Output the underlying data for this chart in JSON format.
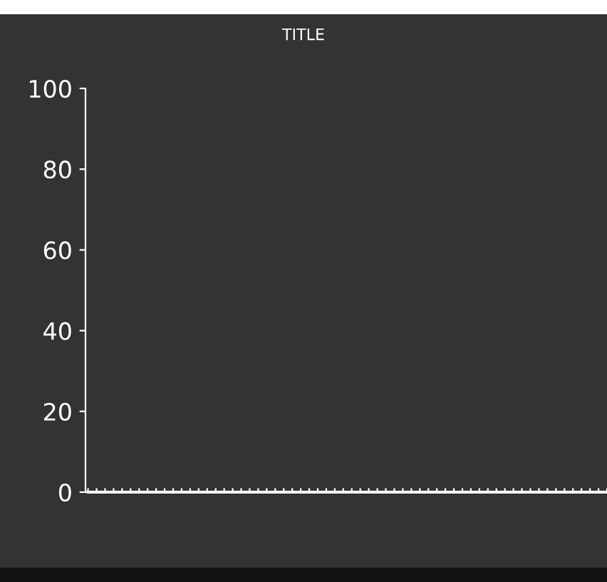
{
  "chart_data": {
    "type": "line",
    "title": "TITLE",
    "categories": [
      null,
      null,
      null,
      null,
      null,
      null,
      null,
      null,
      null,
      null,
      null,
      null,
      null,
      null,
      null,
      null,
      null,
      null,
      null,
      null,
      null,
      null,
      null,
      null,
      null,
      null,
      null,
      null,
      null,
      null,
      null,
      null,
      null,
      null,
      null,
      null,
      null,
      null,
      null,
      null,
      null,
      null,
      null,
      null,
      null,
      null,
      null,
      null,
      null,
      null,
      null,
      null,
      null,
      null,
      null,
      null,
      null,
      null,
      null,
      null,
      null,
      null
    ],
    "series": [
      {
        "color": "#ffffff",
        "values": [
          0,
          0,
          0,
          0,
          0,
          0,
          0,
          0,
          0,
          0,
          0,
          0,
          0,
          0,
          0,
          0,
          0,
          0,
          0,
          0,
          0,
          0,
          0,
          0,
          0,
          0,
          0,
          0,
          0,
          0,
          0,
          0,
          0,
          0,
          0,
          0,
          0,
          0,
          0,
          0,
          0,
          0,
          0,
          0,
          0,
          0,
          0,
          0,
          0,
          0,
          0,
          0,
          0,
          0,
          0,
          0,
          0,
          0,
          0,
          0,
          0,
          0
        ]
      }
    ],
    "ylim": [
      0,
      100
    ],
    "yticks": [
      0,
      20,
      40,
      60,
      80,
      100
    ],
    "tick_labels": "y"
  }
}
